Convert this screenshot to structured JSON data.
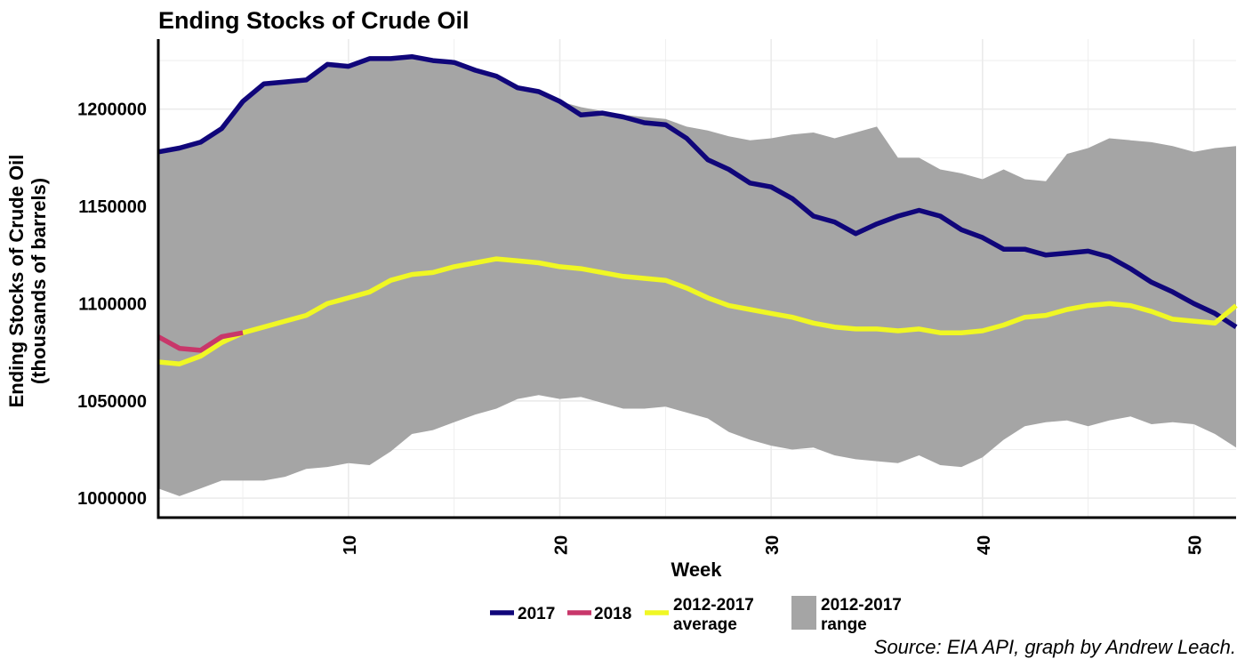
{
  "chart_data": {
    "type": "line",
    "title": "Ending Stocks of Crude Oil",
    "xlabel": "Week",
    "ylabel": [
      "Ending Stocks of Crude Oil",
      "(thousands of barrels)"
    ],
    "caption": "Source: EIA API, graph by Andrew Leach.",
    "xlim": [
      1,
      52
    ],
    "ylim": [
      990000,
      1236000
    ],
    "x_ticks": [
      10,
      20,
      30,
      40,
      50
    ],
    "y_ticks": [
      1000000,
      1050000,
      1100000,
      1150000,
      1200000
    ],
    "grid": true,
    "legend_position": "bottom",
    "colors": {
      "series_2017": "#10067a",
      "series_2018": "#c8376a",
      "series_average": "#f0f724",
      "range_fill": "#a5a5a5",
      "grid": "#ebebeb"
    },
    "range": {
      "name": "2012-2017 range",
      "upper": [
        1178000,
        1180000,
        1183000,
        1190000,
        1204000,
        1213000,
        1214000,
        1215000,
        1223000,
        1222000,
        1226000,
        1226000,
        1227000,
        1225000,
        1224000,
        1220000,
        1217000,
        1211000,
        1209000,
        1204000,
        1201000,
        1199000,
        1197000,
        1196000,
        1195000,
        1191000,
        1189000,
        1186000,
        1184000,
        1185000,
        1187000,
        1188000,
        1185000,
        1188000,
        1191000,
        1175000,
        1175000,
        1169000,
        1167000,
        1164000,
        1169000,
        1164000,
        1163000,
        1177000,
        1180000,
        1185000,
        1184000,
        1183000,
        1181000,
        1178000,
        1180000,
        1181000
      ],
      "lower": [
        1005000,
        1001000,
        1005000,
        1009000,
        1009000,
        1009000,
        1011000,
        1015000,
        1016000,
        1018000,
        1017000,
        1024000,
        1033000,
        1035000,
        1039000,
        1043000,
        1046000,
        1051000,
        1053000,
        1051000,
        1052000,
        1049000,
        1046000,
        1046000,
        1047000,
        1044000,
        1041000,
        1034000,
        1030000,
        1027000,
        1025000,
        1026000,
        1022000,
        1020000,
        1019000,
        1018000,
        1022000,
        1017000,
        1016000,
        1021000,
        1030000,
        1037000,
        1039000,
        1040000,
        1037000,
        1040000,
        1042000,
        1038000,
        1039000,
        1038000,
        1033000,
        1026000
      ]
    },
    "series": [
      {
        "name": "2017",
        "x": [
          1,
          2,
          3,
          4,
          5,
          6,
          7,
          8,
          9,
          10,
          11,
          12,
          13,
          14,
          15,
          16,
          17,
          18,
          19,
          20,
          21,
          22,
          23,
          24,
          25,
          26,
          27,
          28,
          29,
          30,
          31,
          32,
          33,
          34,
          35,
          36,
          37,
          38,
          39,
          40,
          41,
          42,
          43,
          44,
          45,
          46,
          47,
          48,
          49,
          50,
          51,
          52
        ],
        "values": [
          1178000,
          1180000,
          1183000,
          1190000,
          1204000,
          1213000,
          1214000,
          1215000,
          1223000,
          1222000,
          1226000,
          1226000,
          1227000,
          1225000,
          1224000,
          1220000,
          1217000,
          1211000,
          1209000,
          1204000,
          1197000,
          1198000,
          1196000,
          1193000,
          1192000,
          1185000,
          1174000,
          1169000,
          1162000,
          1160000,
          1154000,
          1145000,
          1142000,
          1136000,
          1141000,
          1145000,
          1148000,
          1145000,
          1138000,
          1134000,
          1128000,
          1128000,
          1125000,
          1126000,
          1127000,
          1124000,
          1118000,
          1111000,
          1106000,
          1100000,
          1095000,
          1088000
        ]
      },
      {
        "name": "2018",
        "x": [
          1,
          2,
          3,
          4,
          5
        ],
        "values": [
          1083000,
          1077000,
          1076000,
          1083000,
          1085000
        ]
      },
      {
        "name": "2012-2017 average",
        "x": [
          1,
          2,
          3,
          4,
          5,
          6,
          7,
          8,
          9,
          10,
          11,
          12,
          13,
          14,
          15,
          16,
          17,
          18,
          19,
          20,
          21,
          22,
          23,
          24,
          25,
          26,
          27,
          28,
          29,
          30,
          31,
          32,
          33,
          34,
          35,
          36,
          37,
          38,
          39,
          40,
          41,
          42,
          43,
          44,
          45,
          46,
          47,
          48,
          49,
          50,
          51,
          52
        ],
        "values": [
          1070000,
          1069000,
          1073000,
          1080000,
          1085000,
          1088000,
          1091000,
          1094000,
          1100000,
          1103000,
          1106000,
          1112000,
          1115000,
          1116000,
          1119000,
          1121000,
          1123000,
          1122000,
          1121000,
          1119000,
          1118000,
          1116000,
          1114000,
          1113000,
          1112000,
          1108000,
          1103000,
          1099000,
          1097000,
          1095000,
          1093000,
          1090000,
          1088000,
          1087000,
          1087000,
          1086000,
          1087000,
          1085000,
          1085000,
          1086000,
          1089000,
          1093000,
          1094000,
          1097000,
          1099000,
          1100000,
          1099000,
          1096000,
          1092000,
          1091000,
          1090000,
          1099000
        ]
      }
    ],
    "legend": [
      {
        "key": "series_2017",
        "label": [
          "2017"
        ]
      },
      {
        "key": "series_2018",
        "label": [
          "2018"
        ]
      },
      {
        "key": "series_average",
        "label": [
          "2012-2017",
          "average"
        ]
      },
      {
        "key": "range_fill",
        "label": [
          "2012-2017",
          "range"
        ]
      }
    ]
  }
}
